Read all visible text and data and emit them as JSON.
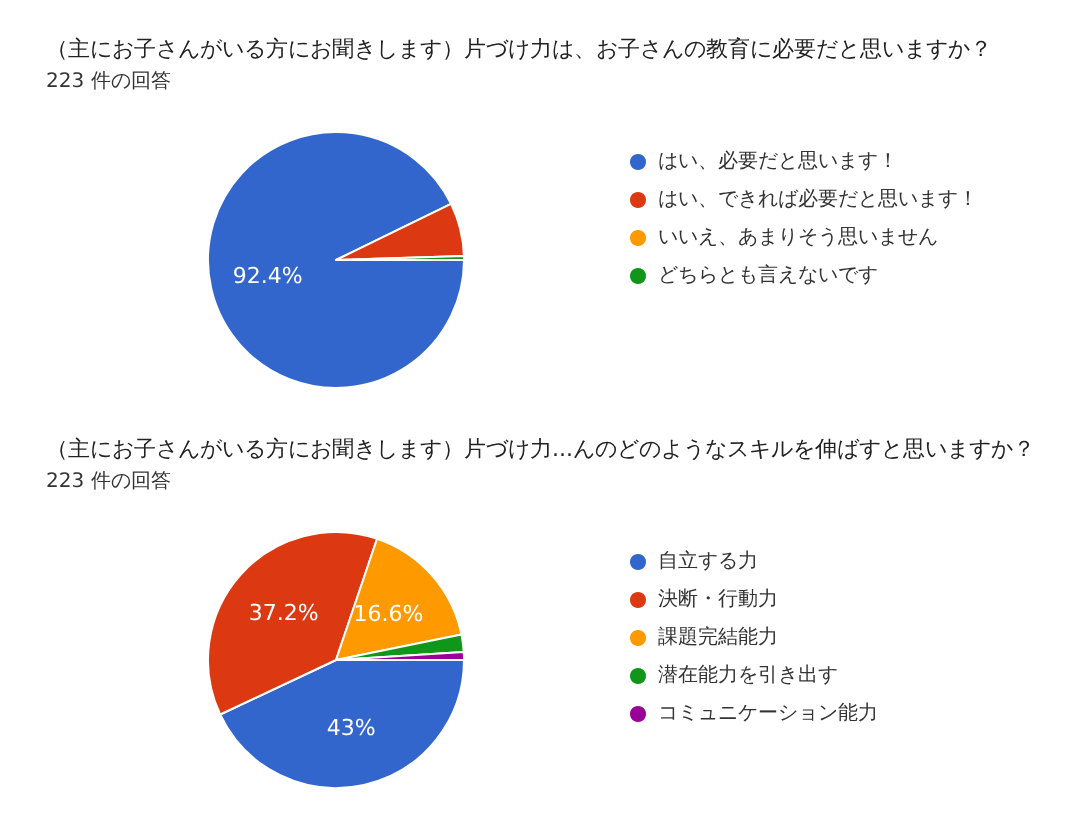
{
  "chart_data": [
    {
      "type": "pie",
      "title": "（主にお子さんがいる方にお聞きします）片づけ力は、お子さんの教育に必要だと思いますか？",
      "subtitle": "223 件の回答",
      "categories": [
        "はい、必要だと思います！",
        "はい、できれば必要だと思います！",
        "いいえ、あまりそう思いません",
        "どちらとも言えないです"
      ],
      "values": [
        92.4,
        6.7,
        null,
        0.5
      ],
      "colors": [
        "#3366cc",
        "#dc3912",
        "#ff9900",
        "#109618"
      ],
      "value_labels": [
        "92.4%",
        null,
        null,
        null
      ],
      "legend": "right"
    },
    {
      "type": "pie",
      "title": "（主にお子さんがいる方にお聞きします）片づけ力...んのどのようなスキルを伸ばすと思いますか？",
      "subtitle": "223 件の回答",
      "categories": [
        "自立する力",
        "決断・行動力",
        "課題完結能力",
        "潜在能力を引き出す",
        "コミュニケーション能力"
      ],
      "values": [
        43,
        37.2,
        16.6,
        2.2,
        1.0
      ],
      "colors": [
        "#3366cc",
        "#dc3912",
        "#ff9900",
        "#109618",
        "#990099"
      ],
      "value_labels": [
        "43%",
        "37.2%",
        "16.6%",
        null,
        null
      ],
      "legend": "right"
    }
  ]
}
